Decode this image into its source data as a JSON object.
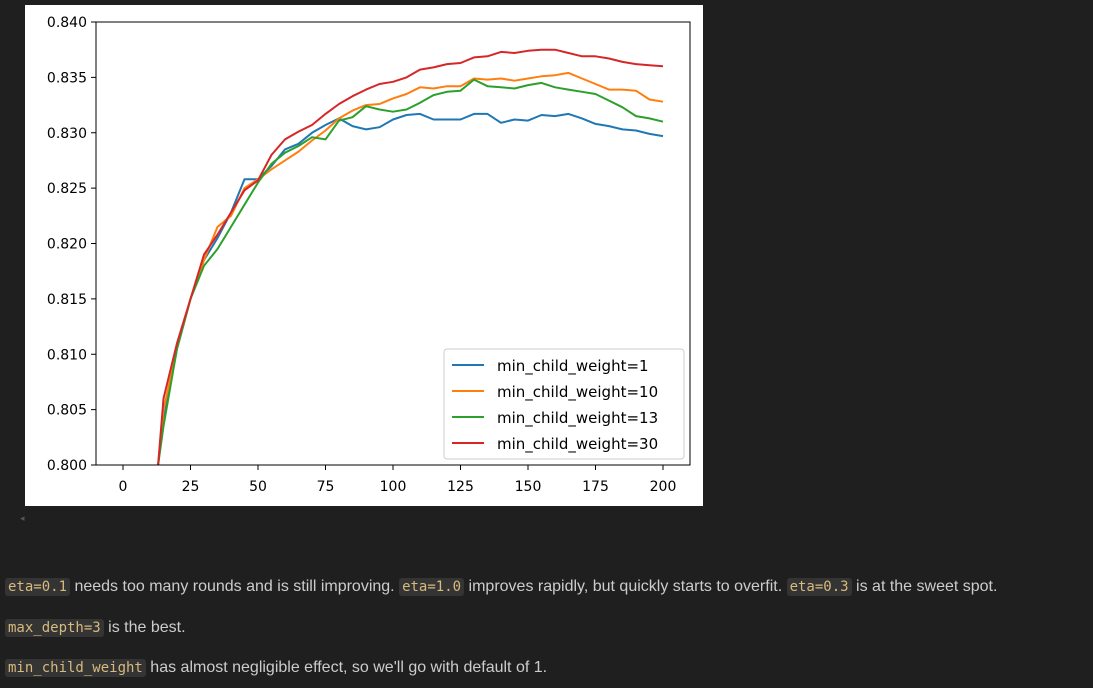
{
  "chart_data": {
    "type": "line",
    "x_ticks": [
      0,
      25,
      50,
      75,
      100,
      125,
      150,
      175,
      200
    ],
    "y_ticks": [
      "0.800",
      "0.805",
      "0.810",
      "0.815",
      "0.820",
      "0.825",
      "0.830",
      "0.835",
      "0.840"
    ],
    "xlim": [
      -10,
      210
    ],
    "ylim": [
      0.8,
      0.84
    ],
    "grid": false,
    "legend_position": "lower-right",
    "series": [
      {
        "name": "min_child_weight=1",
        "color": "#1f77b4",
        "points": [
          [
            13,
            0.8
          ],
          [
            15,
            0.804
          ],
          [
            20,
            0.8105
          ],
          [
            25,
            0.815
          ],
          [
            30,
            0.8185
          ],
          [
            35,
            0.8205
          ],
          [
            40,
            0.8228
          ],
          [
            45,
            0.8258
          ],
          [
            50,
            0.8258
          ],
          [
            55,
            0.827
          ],
          [
            60,
            0.8285
          ],
          [
            65,
            0.829
          ],
          [
            70,
            0.83
          ],
          [
            75,
            0.8307
          ],
          [
            80,
            0.8313
          ],
          [
            85,
            0.8306
          ],
          [
            90,
            0.8303
          ],
          [
            95,
            0.8305
          ],
          [
            100,
            0.8312
          ],
          [
            105,
            0.8316
          ],
          [
            110,
            0.8317
          ],
          [
            115,
            0.8312
          ],
          [
            120,
            0.8312
          ],
          [
            125,
            0.8312
          ],
          [
            130,
            0.8317
          ],
          [
            135,
            0.8317
          ],
          [
            140,
            0.8309
          ],
          [
            145,
            0.8312
          ],
          [
            150,
            0.8311
          ],
          [
            155,
            0.8316
          ],
          [
            160,
            0.8315
          ],
          [
            165,
            0.8317
          ],
          [
            170,
            0.8313
          ],
          [
            175,
            0.8308
          ],
          [
            180,
            0.8306
          ],
          [
            185,
            0.8303
          ],
          [
            190,
            0.8302
          ],
          [
            195,
            0.8299
          ],
          [
            200,
            0.8297
          ]
        ]
      },
      {
        "name": "min_child_weight=10",
        "color": "#ff7f0e",
        "points": [
          [
            13,
            0.8
          ],
          [
            15,
            0.805
          ],
          [
            20,
            0.8105
          ],
          [
            25,
            0.815
          ],
          [
            30,
            0.8185
          ],
          [
            35,
            0.8215
          ],
          [
            40,
            0.8225
          ],
          [
            45,
            0.825
          ],
          [
            50,
            0.8258
          ],
          [
            55,
            0.8267
          ],
          [
            60,
            0.8275
          ],
          [
            65,
            0.8283
          ],
          [
            70,
            0.8293
          ],
          [
            75,
            0.8302
          ],
          [
            80,
            0.8313
          ],
          [
            85,
            0.832
          ],
          [
            90,
            0.8325
          ],
          [
            95,
            0.8326
          ],
          [
            100,
            0.8331
          ],
          [
            105,
            0.8335
          ],
          [
            110,
            0.8341
          ],
          [
            115,
            0.834
          ],
          [
            120,
            0.8342
          ],
          [
            125,
            0.8342
          ],
          [
            130,
            0.8349
          ],
          [
            135,
            0.8348
          ],
          [
            140,
            0.8349
          ],
          [
            145,
            0.8347
          ],
          [
            150,
            0.8349
          ],
          [
            155,
            0.8351
          ],
          [
            160,
            0.8352
          ],
          [
            165,
            0.8354
          ],
          [
            170,
            0.8349
          ],
          [
            175,
            0.8344
          ],
          [
            180,
            0.8339
          ],
          [
            185,
            0.8339
          ],
          [
            190,
            0.8338
          ],
          [
            195,
            0.833
          ],
          [
            200,
            0.8328
          ]
        ]
      },
      {
        "name": "min_child_weight=13",
        "color": "#2ca02c",
        "points": [
          [
            13,
            0.8
          ],
          [
            15,
            0.8035
          ],
          [
            20,
            0.8105
          ],
          [
            25,
            0.815
          ],
          [
            30,
            0.818
          ],
          [
            35,
            0.8195
          ],
          [
            40,
            0.8215
          ],
          [
            45,
            0.8235
          ],
          [
            50,
            0.8255
          ],
          [
            55,
            0.8272
          ],
          [
            60,
            0.8282
          ],
          [
            65,
            0.8288
          ],
          [
            70,
            0.8296
          ],
          [
            75,
            0.8294
          ],
          [
            80,
            0.8311
          ],
          [
            85,
            0.8314
          ],
          [
            90,
            0.8324
          ],
          [
            95,
            0.8321
          ],
          [
            100,
            0.8319
          ],
          [
            105,
            0.8321
          ],
          [
            110,
            0.8327
          ],
          [
            115,
            0.8334
          ],
          [
            120,
            0.8337
          ],
          [
            125,
            0.8338
          ],
          [
            130,
            0.8348
          ],
          [
            135,
            0.8342
          ],
          [
            140,
            0.8341
          ],
          [
            145,
            0.834
          ],
          [
            150,
            0.8343
          ],
          [
            155,
            0.8345
          ],
          [
            160,
            0.8341
          ],
          [
            165,
            0.8339
          ],
          [
            170,
            0.8337
          ],
          [
            175,
            0.8335
          ],
          [
            180,
            0.8329
          ],
          [
            185,
            0.8323
          ],
          [
            190,
            0.8315
          ],
          [
            195,
            0.8313
          ],
          [
            200,
            0.831
          ]
        ]
      },
      {
        "name": "min_child_weight=30",
        "color": "#d62728",
        "points": [
          [
            13,
            0.8
          ],
          [
            15,
            0.806
          ],
          [
            20,
            0.811
          ],
          [
            25,
            0.815
          ],
          [
            30,
            0.819
          ],
          [
            35,
            0.8208
          ],
          [
            40,
            0.8228
          ],
          [
            45,
            0.8248
          ],
          [
            50,
            0.8257
          ],
          [
            55,
            0.828
          ],
          [
            60,
            0.8294
          ],
          [
            65,
            0.8301
          ],
          [
            70,
            0.8307
          ],
          [
            75,
            0.8317
          ],
          [
            80,
            0.8326
          ],
          [
            85,
            0.8333
          ],
          [
            90,
            0.8339
          ],
          [
            95,
            0.8344
          ],
          [
            100,
            0.8346
          ],
          [
            105,
            0.835
          ],
          [
            110,
            0.8357
          ],
          [
            115,
            0.8359
          ],
          [
            120,
            0.8362
          ],
          [
            125,
            0.8363
          ],
          [
            130,
            0.8368
          ],
          [
            135,
            0.8369
          ],
          [
            140,
            0.8373
          ],
          [
            145,
            0.8372
          ],
          [
            150,
            0.8374
          ],
          [
            155,
            0.8375
          ],
          [
            160,
            0.8375
          ],
          [
            165,
            0.8372
          ],
          [
            170,
            0.8369
          ],
          [
            175,
            0.8369
          ],
          [
            180,
            0.8367
          ],
          [
            185,
            0.8364
          ],
          [
            190,
            0.8362
          ],
          [
            195,
            0.8361
          ],
          [
            200,
            0.836
          ]
        ]
      }
    ]
  },
  "markdown": {
    "line1": {
      "code1": "eta=0.1",
      "text1": " needs too many rounds and is still improving. ",
      "code2": "eta=1.0",
      "text2": " improves rapidly, but quickly starts to overfit. ",
      "code3": "eta=0.3",
      "text3": " is at the sweet spot."
    },
    "line2": {
      "code1": "max_depth=3",
      "text1": " is the best."
    },
    "line3": {
      "code1": "min_child_weight",
      "text1": " has almost negligible effect, so we'll go with default of 1."
    }
  }
}
